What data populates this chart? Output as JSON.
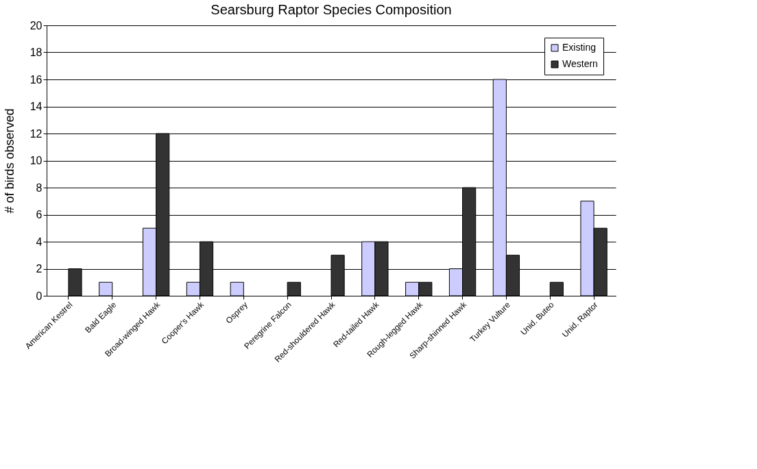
{
  "chart_data": {
    "type": "bar",
    "title": "Searsburg Raptor Species Composition",
    "ylabel": "# of birds observed",
    "categories": [
      "American Kestrel",
      "Bald Eagle",
      "Broad-winged Hawk",
      "Cooper's Hawk",
      "Osprey",
      "Peregrine Falcon",
      "Red-shouldered Hawk",
      "Red-tailed Hawk",
      "Rough-legged Hawk",
      "Sharp-shinned Hawk",
      "Turkey Vulture",
      "Unid. Buteo",
      "Unid. Raptor"
    ],
    "series": [
      {
        "name": "Existing",
        "color": "#ccccff",
        "values": [
          0,
          1,
          5,
          1,
          1,
          0,
          0,
          4,
          1,
          2,
          16,
          0,
          7
        ]
      },
      {
        "name": "Western",
        "color": "#333333",
        "values": [
          2,
          0,
          12,
          4,
          0,
          1,
          3,
          4,
          1,
          8,
          3,
          1,
          5
        ]
      }
    ],
    "ylim": [
      0,
      20
    ],
    "yticks": [
      0,
      2,
      4,
      6,
      8,
      10,
      12,
      14,
      16,
      18,
      20
    ],
    "grid": "y",
    "legend": "top right"
  }
}
